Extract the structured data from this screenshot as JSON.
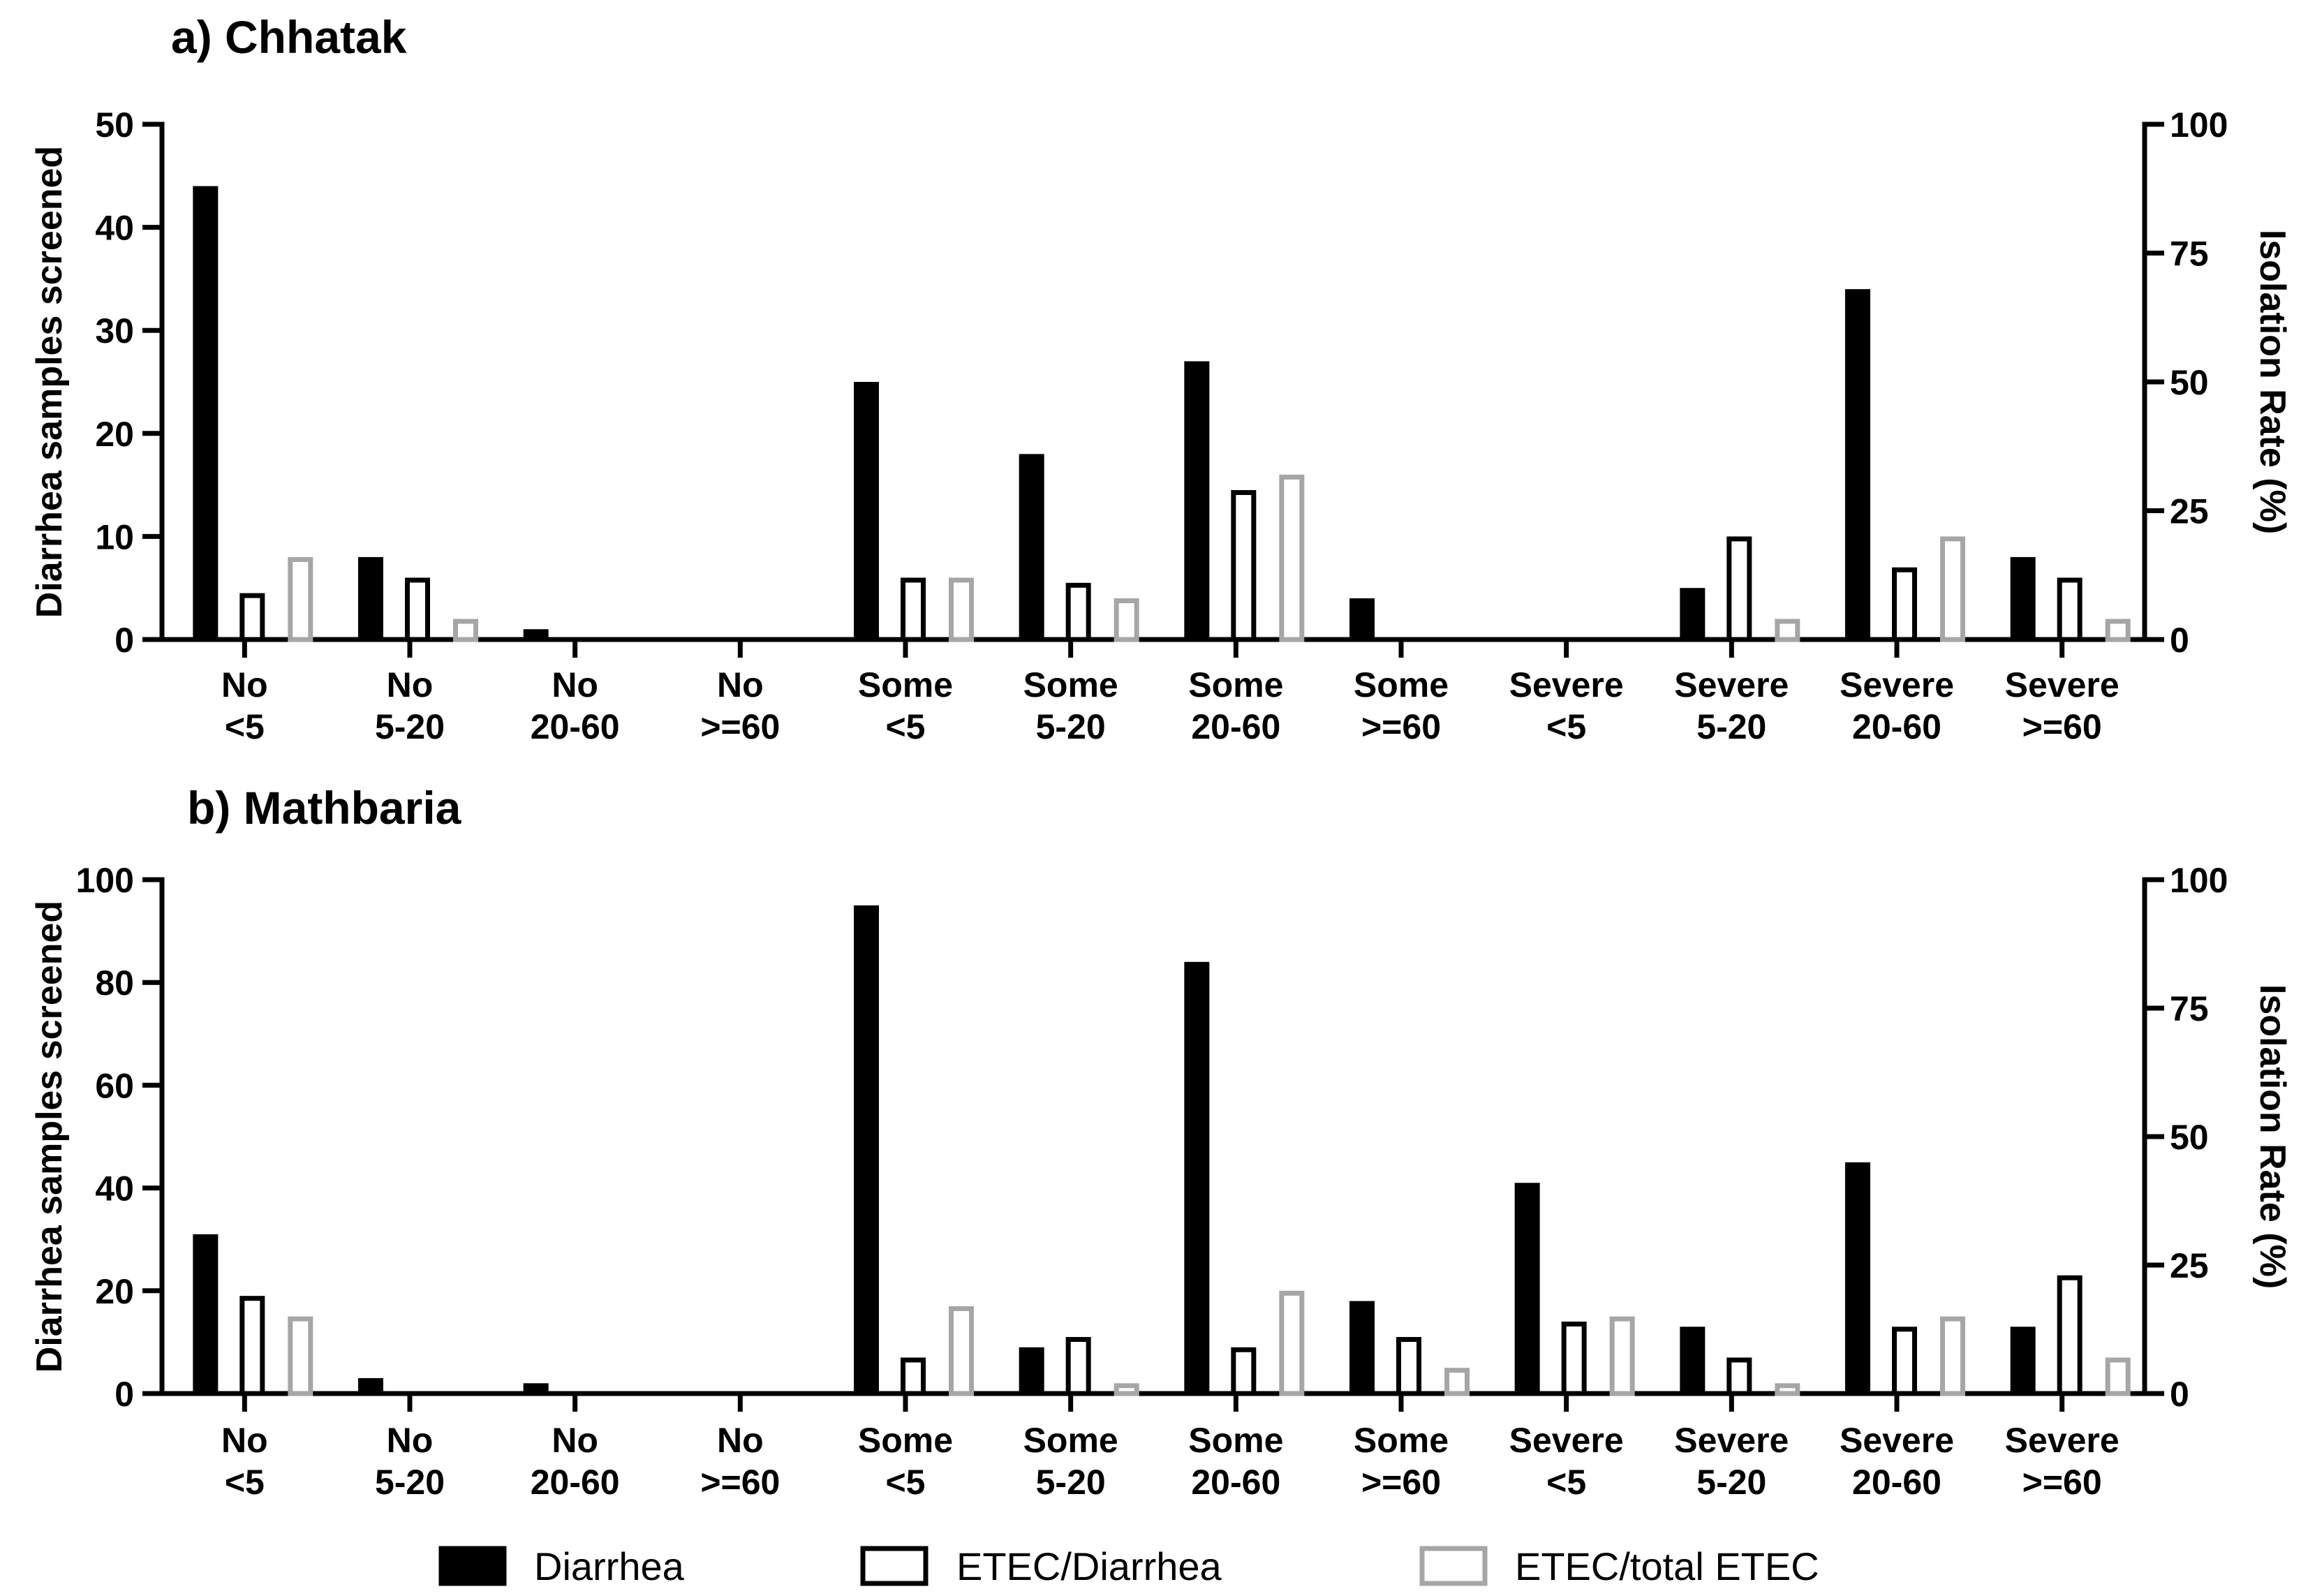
{
  "chart_data": [
    {
      "type": "bar",
      "title": "a) Chhatak",
      "categories": [
        [
          "No",
          "<5"
        ],
        [
          "No",
          "5-20"
        ],
        [
          "No",
          "20-60"
        ],
        [
          "No",
          ">=60"
        ],
        [
          "Some",
          "<5"
        ],
        [
          "Some",
          "5-20"
        ],
        [
          "Some",
          "20-60"
        ],
        [
          "Some",
          ">=60"
        ],
        [
          "Severe",
          "<5"
        ],
        [
          "Severe",
          "5-20"
        ],
        [
          "Severe",
          "20-60"
        ],
        [
          "Severe",
          ">=60"
        ]
      ],
      "ylabel": "Diarrhea samples screened",
      "ylim": [
        0,
        50
      ],
      "yticks": [
        0,
        10,
        20,
        30,
        40,
        50
      ],
      "y2label": "Isolation Rate (%)",
      "y2lim": [
        0,
        100
      ],
      "y2ticks": [
        0,
        25,
        50,
        75,
        100
      ],
      "series": [
        {
          "name": "Diarrhea",
          "axis": "left",
          "values": [
            44,
            8,
            1,
            0,
            25,
            18,
            27,
            4,
            0,
            5,
            34,
            8
          ]
        },
        {
          "name": "ETEC/Diarrhea",
          "axis": "right",
          "values": [
            9,
            12,
            0,
            0,
            12,
            11,
            29,
            0,
            0,
            20,
            14,
            12
          ]
        },
        {
          "name": "ETEC/total ETEC",
          "axis": "right",
          "values": [
            16,
            4,
            0,
            0,
            12,
            8,
            32,
            0,
            0,
            4,
            20,
            4
          ]
        }
      ]
    },
    {
      "type": "bar",
      "title": "b) Mathbaria",
      "categories": [
        [
          "No",
          "<5"
        ],
        [
          "No",
          "5-20"
        ],
        [
          "No",
          "20-60"
        ],
        [
          "No",
          ">=60"
        ],
        [
          "Some",
          "<5"
        ],
        [
          "Some",
          "5-20"
        ],
        [
          "Some",
          "20-60"
        ],
        [
          "Some",
          ">=60"
        ],
        [
          "Severe",
          "<5"
        ],
        [
          "Severe",
          "5-20"
        ],
        [
          "Severe",
          "20-60"
        ],
        [
          "Severe",
          ">=60"
        ]
      ],
      "ylabel": "Diarrhea samples screened",
      "ylim": [
        0,
        100
      ],
      "yticks": [
        0,
        20,
        40,
        60,
        80,
        100
      ],
      "y2label": "Isolation Rate (%)",
      "y2lim": [
        0,
        100
      ],
      "y2ticks": [
        0,
        25,
        50,
        75,
        100
      ],
      "series": [
        {
          "name": "Diarrhea",
          "axis": "left",
          "values": [
            31,
            3,
            2,
            0,
            95,
            9,
            84,
            18,
            41,
            13,
            45,
            13
          ]
        },
        {
          "name": "ETEC/Diarrhea",
          "axis": "right",
          "values": [
            19,
            0,
            0,
            0,
            7,
            11,
            9,
            11,
            14,
            7,
            13,
            23
          ]
        },
        {
          "name": "ETEC/total ETEC",
          "axis": "right",
          "values": [
            15,
            0,
            0,
            0,
            17,
            2,
            20,
            5,
            15,
            2,
            15,
            7
          ]
        }
      ]
    }
  ],
  "legend": [
    {
      "label": "Diarrhea",
      "style": "solid",
      "color": "#000000"
    },
    {
      "label": "ETEC/Diarrhea",
      "style": "outline",
      "color": "#000000"
    },
    {
      "label": "ETEC/total ETEC",
      "style": "outline",
      "color": "#a6a6a6"
    }
  ]
}
